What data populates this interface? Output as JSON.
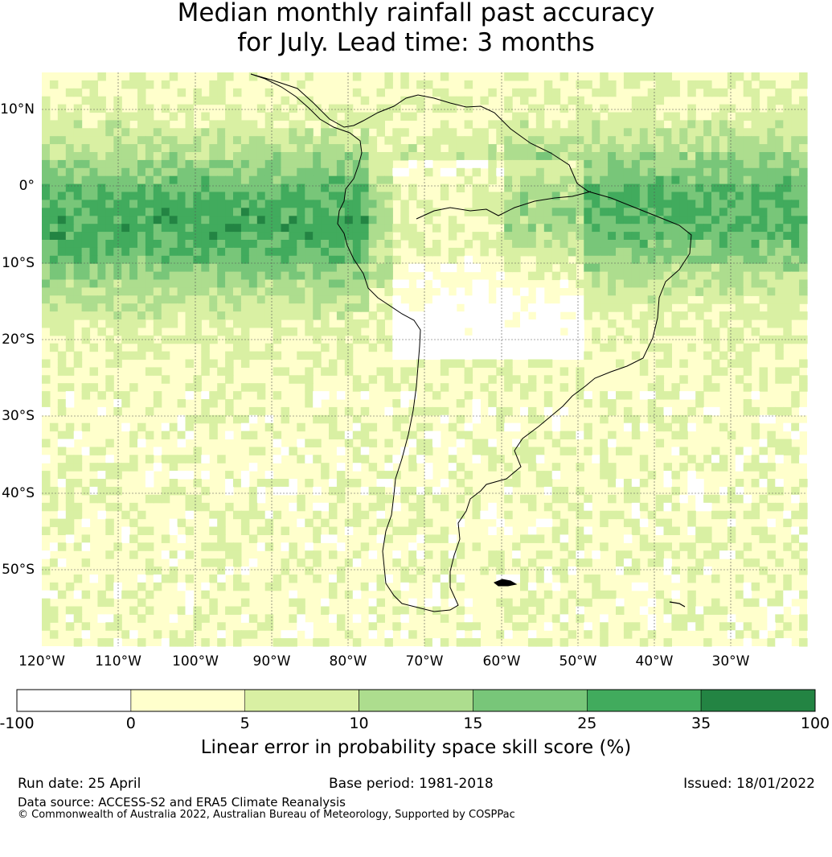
{
  "title": {
    "line1": "Median monthly rainfall past accuracy",
    "line2": "for July. Lead time: 3 months"
  },
  "map": {
    "lon_labels": [
      "120°W",
      "110°W",
      "100°W",
      "90°W",
      "80°W",
      "70°W",
      "60°W",
      "50°W",
      "40°W",
      "30°W"
    ],
    "lat_labels": [
      "10°N",
      "0°",
      "10°S",
      "20°S",
      "30°S",
      "40°S",
      "50°S"
    ],
    "extent": {
      "lon_min": -120,
      "lon_max": -20,
      "lat_min": -60,
      "lat_max": 15
    }
  },
  "colorbar": {
    "ticks": [
      "-100",
      "0",
      "5",
      "10",
      "15",
      "25",
      "35",
      "100"
    ],
    "colors": [
      "#ffffff",
      "#ffffcc",
      "#d9f0a3",
      "#addd8e",
      "#78c679",
      "#41ab5d",
      "#238443"
    ],
    "label": "Linear error in probability space skill score (%)"
  },
  "footer": {
    "run_date": "Run date: 25 April",
    "base_period": "Base period: 1981-2018",
    "issued": "Issued: 18/01/2022",
    "data_source": "Data source: ACCESS-S2 and ERA5 Climate Reanalysis",
    "copyright": "© Commonwealth of Australia 2022, Australian Bureau of Meteorology, Supported by COSPPac"
  }
}
